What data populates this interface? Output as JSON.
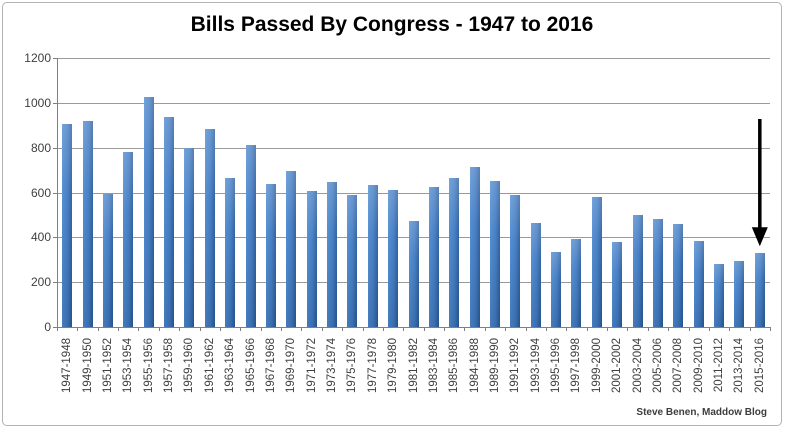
{
  "title": "Bills Passed By Congress - 1947 to 2016",
  "attribution": "Steve Benen, Maddow Blog",
  "colors": {
    "bar_light": "#4c89d0",
    "bar_mid": "#3f7ac2",
    "bar_dark": "#2a5b9b",
    "gridline": "#9a9a9a",
    "axis": "#7f7f7f",
    "text": "#404040",
    "title": "#000000",
    "arrow": "#000000",
    "frame_border": "#b3b3b3"
  },
  "chart_data": {
    "type": "bar",
    "title": "Bills Passed By Congress - 1947 to 2016",
    "xlabel": "",
    "ylabel": "",
    "ylim": [
      0,
      1200
    ],
    "yticks": [
      0,
      200,
      400,
      600,
      800,
      1000,
      1200
    ],
    "grid": true,
    "legend": false,
    "categories": [
      "1947-1948",
      "1949-1950",
      "1951-1952",
      "1953-1954",
      "1955-1956",
      "1957-1958",
      "1959-1960",
      "1961-1962",
      "1963-1964",
      "1965-1966",
      "1967-1968",
      "1969-1970",
      "1971-1972",
      "1973-1974",
      "1975-1976",
      "1977-1978",
      "1979-1980",
      "1981-1982",
      "1983-1984",
      "1985-1986",
      "1984-1988",
      "1989-1990",
      "1991-1992",
      "1993-1994",
      "1995-1996",
      "1997-1998",
      "1999-2000",
      "2001-2002",
      "2003-2004",
      "2005-2006",
      "2007-2008",
      "2009-2010",
      "2011-2012",
      "2013-2014",
      "2015-2016"
    ],
    "values": [
      906,
      921,
      594,
      781,
      1028,
      936,
      800,
      885,
      666,
      810,
      640,
      695,
      607,
      649,
      588,
      633,
      613,
      473,
      623,
      664,
      713,
      650,
      590,
      465,
      333,
      394,
      580,
      377,
      498,
      482,
      460,
      383,
      283,
      296,
      329
    ],
    "annotation": {
      "type": "arrow-down",
      "target_category": "2015-2016"
    }
  }
}
